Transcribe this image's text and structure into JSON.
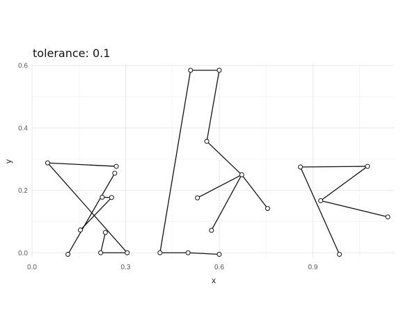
{
  "chart_data": {
    "type": "line",
    "title": "tolerance: 0.1",
    "xlabel": "x",
    "ylabel": "y",
    "xlim": [
      0,
      1.16
    ],
    "ylim": [
      -0.015,
      0.605
    ],
    "x_ticks": [
      "0.0",
      "0.3",
      "0.6",
      "0.9"
    ],
    "x_tick_values": [
      0,
      0.3,
      0.6,
      0.9
    ],
    "y_ticks": [
      "0.0",
      "0.2",
      "0.4",
      "0.6"
    ],
    "y_tick_values": [
      0,
      0.2,
      0.4,
      0.6
    ],
    "grid": true,
    "paths": [
      {
        "points": [
          [
            0.05,
            0.288
          ],
          [
            0.27,
            0.277
          ]
        ]
      },
      {
        "points": [
          [
            0.05,
            0.288
          ],
          [
            0.305,
            0.0
          ]
        ]
      },
      {
        "points": [
          [
            0.115,
            -0.005
          ],
          [
            0.265,
            0.255
          ]
        ]
      },
      {
        "points": [
          [
            0.155,
            0.073
          ],
          [
            0.255,
            0.177
          ]
        ]
      },
      {
        "points": [
          [
            0.22,
            0.0
          ],
          [
            0.305,
            0.0
          ]
        ]
      },
      {
        "points": [
          [
            0.22,
            0.0
          ],
          [
            0.235,
            0.065
          ]
        ]
      },
      {
        "points": [
          [
            0.225,
            0.178
          ],
          [
            0.255,
            0.177
          ]
        ]
      },
      {
        "points": [
          [
            0.41,
            0.0
          ],
          [
            0.508,
            0.585
          ],
          [
            0.6,
            0.585
          ],
          [
            0.56,
            0.357
          ],
          [
            0.672,
            0.25
          ],
          [
            0.755,
            0.142
          ]
        ]
      },
      {
        "points": [
          [
            0.41,
            0.0
          ],
          [
            0.5,
            0.0
          ],
          [
            0.6,
            -0.005
          ]
        ]
      },
      {
        "points": [
          [
            0.53,
            0.176
          ],
          [
            0.672,
            0.25
          ]
        ]
      },
      {
        "points": [
          [
            0.575,
            0.072
          ],
          [
            0.672,
            0.25
          ]
        ]
      },
      {
        "points": [
          [
            0.86,
            0.275
          ],
          [
            0.985,
            -0.005
          ]
        ]
      },
      {
        "points": [
          [
            0.86,
            0.275
          ],
          [
            1.075,
            0.277
          ]
        ]
      },
      {
        "points": [
          [
            0.925,
            0.167
          ],
          [
            1.075,
            0.277
          ]
        ]
      },
      {
        "points": [
          [
            0.925,
            0.167
          ],
          [
            1.14,
            0.115
          ]
        ]
      }
    ]
  }
}
